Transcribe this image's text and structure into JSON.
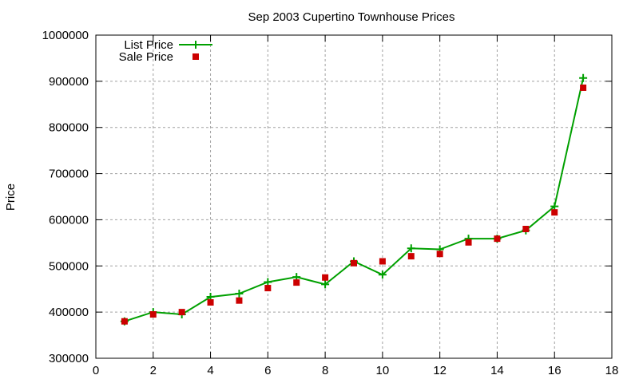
{
  "chart_data": {
    "type": "line",
    "title": "Sep 2003 Cupertino Townhouse Prices",
    "xlabel": "",
    "ylabel": "Price",
    "xlim": [
      0,
      18
    ],
    "ylim": [
      300000,
      1000000
    ],
    "xticks": [
      0,
      2,
      4,
      6,
      8,
      10,
      12,
      14,
      16,
      18
    ],
    "yticks": [
      300000,
      400000,
      500000,
      600000,
      700000,
      800000,
      900000,
      1000000
    ],
    "grid": true,
    "legend_position": "top-left",
    "x": [
      1,
      2,
      3,
      4,
      5,
      6,
      7,
      8,
      9,
      10,
      11,
      12,
      13,
      14,
      15,
      16,
      17
    ],
    "series": [
      {
        "name": "List Price",
        "style": "linespoints",
        "marker": "plus",
        "color": "#00a000",
        "values": [
          380000,
          400000,
          395000,
          433000,
          440000,
          465000,
          476000,
          460000,
          510000,
          481000,
          538000,
          536000,
          559000,
          559000,
          577000,
          629000,
          907000
        ]
      },
      {
        "name": "Sale Price",
        "style": "points",
        "marker": "square",
        "color": "#cc0000",
        "values": [
          380000,
          395000,
          400000,
          421000,
          425000,
          452000,
          464000,
          475000,
          506000,
          510000,
          521000,
          526000,
          551000,
          559000,
          580000,
          616000,
          886000
        ]
      }
    ]
  },
  "legend": {
    "items": [
      {
        "label": "List Price"
      },
      {
        "label": "Sale Price"
      }
    ]
  }
}
